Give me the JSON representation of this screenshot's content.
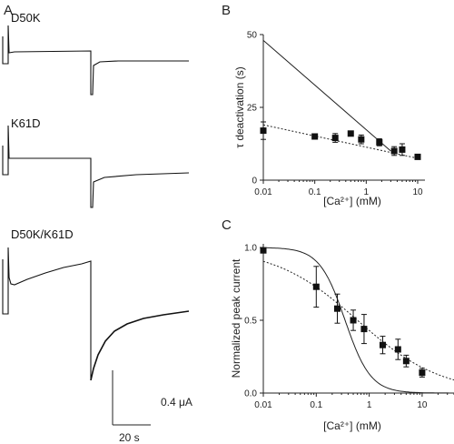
{
  "figure": {
    "panel_a": {
      "letter": "A",
      "traces": [
        {
          "label": "D50K"
        },
        {
          "label": "K61D"
        },
        {
          "label": "D50K/K61D"
        }
      ],
      "scale_bar": {
        "current_label": "0.4 μA",
        "time_label": "20 s"
      }
    },
    "panel_b": {
      "letter": "B"
    },
    "panel_c": {
      "letter": "C"
    }
  },
  "chart_data": [
    {
      "type": "scatter",
      "panel": "B",
      "xlabel": "[Ca²⁺] (mM)",
      "ylabel": "τ deactivation (s)",
      "xscale": "log",
      "xlim": [
        0.01,
        10
      ],
      "ylim": [
        0,
        50
      ],
      "xticks": [
        0.01,
        0.1,
        1,
        10
      ],
      "xtick_labels": [
        "0.01",
        "0.1",
        "1",
        "10"
      ],
      "yticks": [
        0,
        25,
        50
      ],
      "ytick_labels": [
        "0",
        "25",
        "50"
      ],
      "x": [
        0.01,
        0.1,
        0.25,
        0.5,
        0.8,
        1.8,
        3.5,
        5,
        10
      ],
      "y": [
        17,
        15,
        14.5,
        16,
        14,
        13,
        10,
        10.5,
        8
      ],
      "y_err": [
        3,
        0.8,
        1.5,
        0.8,
        1.5,
        1.2,
        1.5,
        2,
        0.8
      ],
      "fits": [
        {
          "style": "solid",
          "x": [
            0.01,
            3
          ],
          "y": [
            48,
            10
          ]
        },
        {
          "style": "dotted",
          "x": [
            0.01,
            10
          ],
          "y": [
            19,
            7.5
          ]
        }
      ]
    },
    {
      "type": "scatter",
      "panel": "C",
      "xlabel": "[Ca²⁺] (mM)",
      "ylabel": "Normalized peak current",
      "xscale": "log",
      "xlim": [
        0.01,
        40
      ],
      "ylim": [
        0,
        1.0
      ],
      "xticks": [
        0.01,
        0.1,
        1,
        10
      ],
      "xtick_labels": [
        "0.01",
        "0.1",
        "1",
        "10"
      ],
      "yticks": [
        0,
        0.5,
        1.0
      ],
      "ytick_labels": [
        "0.0",
        "0.5",
        "1.0"
      ],
      "x": [
        0.01,
        0.1,
        0.25,
        0.5,
        0.8,
        1.8,
        3.5,
        5,
        10
      ],
      "y": [
        0.98,
        0.73,
        0.58,
        0.5,
        0.44,
        0.33,
        0.3,
        0.22,
        0.14
      ],
      "y_err": [
        0,
        0.14,
        0.1,
        0.07,
        0.1,
        0.06,
        0.07,
        0.04,
        0.03
      ],
      "fits": [
        {
          "style": "solid",
          "model": "hill",
          "ic50": 0.35,
          "n": 1.8
        },
        {
          "style": "dotted",
          "model": "hill",
          "ic50": 0.6,
          "n": 0.55
        }
      ]
    }
  ]
}
